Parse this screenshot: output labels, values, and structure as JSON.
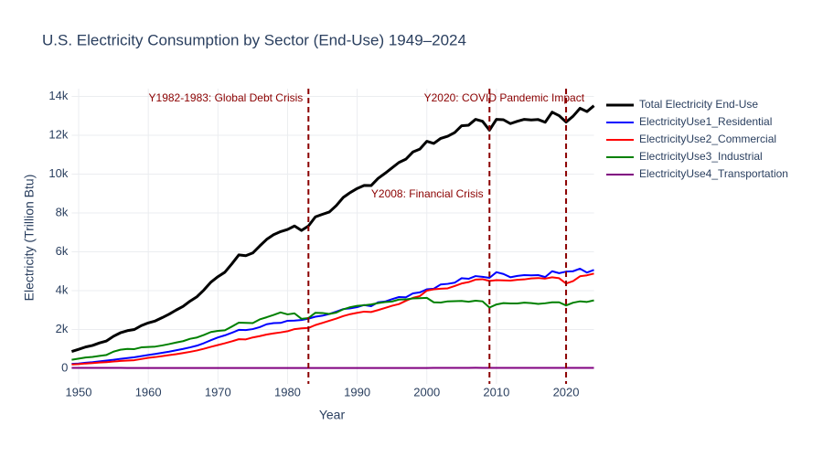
{
  "chart_data": {
    "type": "line",
    "title": "U.S. Electricity Consumption by Sector (End-Use) 1949–2024",
    "x_label": "Year",
    "y_label": "Electricity (Trillion Btu)",
    "x": [
      1949,
      1950,
      1951,
      1952,
      1953,
      1954,
      1955,
      1956,
      1957,
      1958,
      1959,
      1960,
      1961,
      1962,
      1963,
      1964,
      1965,
      1966,
      1967,
      1968,
      1969,
      1970,
      1971,
      1972,
      1973,
      1974,
      1975,
      1976,
      1977,
      1978,
      1979,
      1980,
      1981,
      1982,
      1983,
      1984,
      1985,
      1986,
      1987,
      1988,
      1989,
      1990,
      1991,
      1992,
      1993,
      1994,
      1995,
      1996,
      1997,
      1998,
      1999,
      2000,
      2001,
      2002,
      2003,
      2004,
      2005,
      2006,
      2007,
      2008,
      2009,
      2010,
      2011,
      2012,
      2013,
      2014,
      2015,
      2016,
      2017,
      2018,
      2019,
      2020,
      2021,
      2022,
      2023,
      2024
    ],
    "series": [
      {
        "name": "Total Electricity End-Use",
        "color": "#000000",
        "width": 3,
        "values": [
          870,
          980,
          1100,
          1180,
          1310,
          1410,
          1650,
          1830,
          1940,
          2000,
          2200,
          2340,
          2440,
          2610,
          2790,
          3000,
          3190,
          3460,
          3690,
          4040,
          4440,
          4720,
          4950,
          5380,
          5840,
          5800,
          5940,
          6300,
          6640,
          6880,
          7040,
          7150,
          7330,
          7100,
          7330,
          7800,
          7930,
          8050,
          8380,
          8800,
          9050,
          9260,
          9420,
          9410,
          9780,
          10040,
          10320,
          10600,
          10770,
          11140,
          11290,
          11690,
          11580,
          11840,
          11950,
          12140,
          12490,
          12520,
          12820,
          12720,
          12260,
          12820,
          12800,
          12600,
          12720,
          12820,
          12790,
          12810,
          12670,
          13190,
          13010,
          12680,
          12980,
          13390,
          13220,
          13520
        ]
      },
      {
        "name": "ElectricityUse1_Residential",
        "color": "#0000ff",
        "width": 2,
        "values": [
          230,
          250,
          290,
          320,
          360,
          400,
          440,
          490,
          530,
          570,
          630,
          690,
          740,
          800,
          860,
          930,
          1000,
          1080,
          1170,
          1300,
          1450,
          1590,
          1700,
          1830,
          1980,
          1970,
          2020,
          2120,
          2270,
          2330,
          2340,
          2450,
          2460,
          2490,
          2560,
          2660,
          2710,
          2800,
          2920,
          3050,
          3090,
          3150,
          3260,
          3200,
          3400,
          3440,
          3560,
          3670,
          3660,
          3860,
          3910,
          4070,
          4100,
          4320,
          4350,
          4410,
          4640,
          4610,
          4750,
          4710,
          4660,
          4950,
          4860,
          4690,
          4760,
          4800,
          4790,
          4800,
          4700,
          5000,
          4900,
          4980,
          5000,
          5130,
          4930,
          5070
        ]
      },
      {
        "name": "ElectricityUse2_Commercial",
        "color": "#ff0000",
        "width": 2,
        "values": [
          200,
          220,
          250,
          270,
          300,
          320,
          350,
          380,
          400,
          420,
          480,
          540,
          580,
          630,
          680,
          730,
          790,
          850,
          920,
          1010,
          1110,
          1200,
          1290,
          1390,
          1500,
          1490,
          1590,
          1660,
          1740,
          1800,
          1850,
          1910,
          2020,
          2060,
          2080,
          2230,
          2340,
          2450,
          2560,
          2690,
          2790,
          2860,
          2920,
          2900,
          3000,
          3110,
          3220,
          3310,
          3480,
          3630,
          3720,
          4000,
          4070,
          4100,
          4120,
          4240,
          4370,
          4440,
          4570,
          4590,
          4500,
          4540,
          4530,
          4520,
          4560,
          4580,
          4630,
          4650,
          4620,
          4690,
          4640,
          4370,
          4490,
          4740,
          4790,
          4880
        ]
      },
      {
        "name": "ElectricityUse3_Industrial",
        "color": "#008000",
        "width": 2,
        "values": [
          440,
          500,
          560,
          590,
          640,
          690,
          860,
          960,
          1000,
          990,
          1080,
          1100,
          1120,
          1180,
          1250,
          1330,
          1400,
          1520,
          1590,
          1720,
          1870,
          1930,
          1960,
          2150,
          2350,
          2340,
          2330,
          2520,
          2630,
          2750,
          2880,
          2780,
          2830,
          2550,
          2590,
          2860,
          2850,
          2800,
          2870,
          3040,
          3150,
          3220,
          3250,
          3290,
          3360,
          3410,
          3440,
          3540,
          3550,
          3600,
          3610,
          3630,
          3400,
          3390,
          3450,
          3460,
          3470,
          3430,
          3480,
          3450,
          3130,
          3290,
          3360,
          3340,
          3340,
          3380,
          3360,
          3320,
          3350,
          3400,
          3400,
          3240,
          3380,
          3450,
          3420,
          3500
        ]
      },
      {
        "name": "ElectricityUse4_Transportation",
        "color": "#800080",
        "width": 2,
        "values": [
          22,
          22,
          22,
          22,
          21,
          21,
          21,
          21,
          20,
          20,
          20,
          20,
          20,
          20,
          19,
          19,
          19,
          18,
          18,
          18,
          17,
          17,
          17,
          16,
          16,
          16,
          16,
          16,
          16,
          16,
          16,
          16,
          16,
          16,
          16,
          16,
          16,
          16,
          16,
          17,
          17,
          17,
          17,
          17,
          18,
          18,
          18,
          18,
          18,
          19,
          19,
          20,
          22,
          23,
          24,
          25,
          25,
          25,
          27,
          26,
          26,
          26,
          26,
          26,
          26,
          26,
          26,
          26,
          26,
          26,
          26,
          22,
          23,
          24,
          25,
          25
        ]
      }
    ],
    "vlines": [
      {
        "x": 1983,
        "color": "#8b0000",
        "label": "Y1982-1983: Global Debt Crisis"
      },
      {
        "x": 2009,
        "color": "#8b0000",
        "label": "Y2008: Financial Crisis"
      },
      {
        "x": 2020,
        "color": "#8b0000",
        "label": "Y2020: COVID Pandemic Impact"
      }
    ],
    "xlim": [
      1949,
      2024
    ],
    "xticks": [
      1950,
      1960,
      1970,
      1980,
      1990,
      2000,
      2010,
      2020
    ],
    "ylim": [
      -800,
      14400
    ],
    "yticks": [
      0,
      {
        "value": 2000,
        "label": "2k"
      },
      {
        "value": 4000,
        "label": "4k"
      },
      {
        "value": 6000,
        "label": "6k"
      },
      {
        "value": 8000,
        "label": "8k"
      },
      {
        "value": 10000,
        "label": "10k"
      },
      {
        "value": 12000,
        "label": "12k"
      },
      {
        "value": 14000,
        "label": "14k"
      }
    ],
    "grid": true
  }
}
